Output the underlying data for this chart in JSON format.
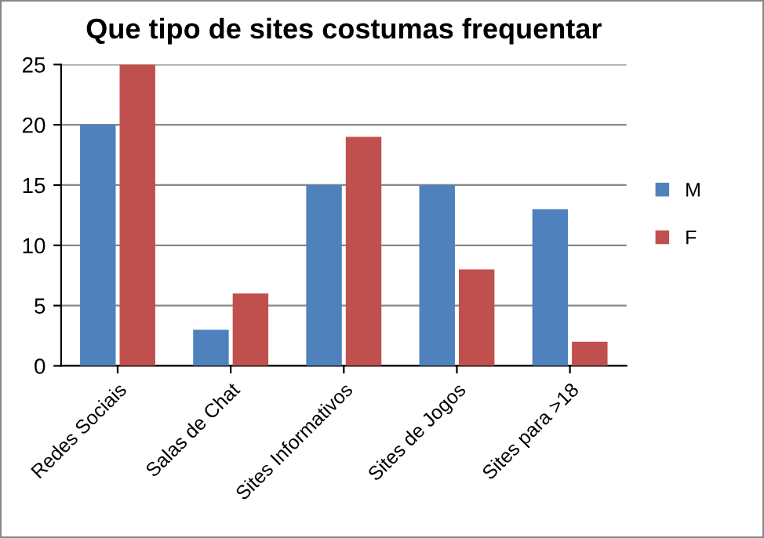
{
  "chart_data": {
    "type": "bar",
    "title": "Que tipo de sites costumas frequentar",
    "categories": [
      "Redes Sociais",
      "Salas de Chat",
      "Sites Informativos",
      "Sites de Jogos",
      "Sites para >18"
    ],
    "series": [
      {
        "name": "M",
        "color": "#4f81bd",
        "values": [
          20,
          3,
          15,
          15,
          13
        ]
      },
      {
        "name": "F",
        "color": "#c0504d",
        "values": [
          25,
          6,
          19,
          8,
          2
        ]
      }
    ],
    "ylim": [
      0,
      25
    ],
    "yticks": [
      0,
      5,
      10,
      15,
      20,
      25
    ],
    "grid": "y",
    "legend": "right"
  }
}
